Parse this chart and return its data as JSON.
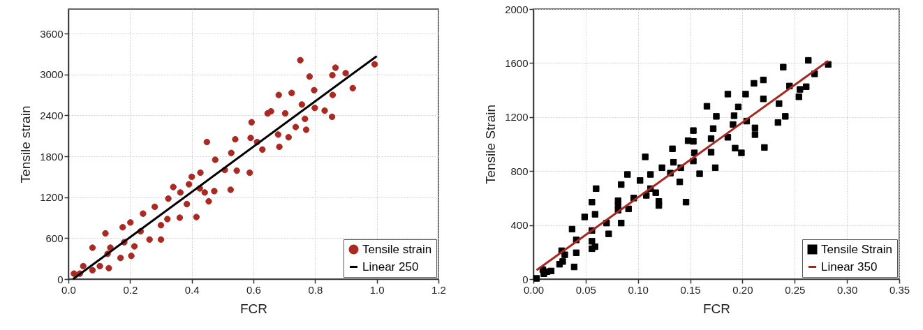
{
  "chart_data": [
    {
      "type": "scatter",
      "xlabel": "FCR",
      "ylabel": "Tensile strain",
      "xlim": [
        0,
        1.2
      ],
      "ylim": [
        0,
        3960
      ],
      "xticks": [
        {
          "value": 0,
          "label": "0.0"
        },
        0.2,
        0.4,
        0.6,
        0.8,
        {
          "value": 1,
          "label": "1.0"
        },
        1.2
      ],
      "yticks": [
        0,
        600,
        1200,
        1800,
        2400,
        3000,
        3600
      ],
      "grid": true,
      "legend": "bottom right",
      "series": [
        {
          "name": "Tensile strain",
          "type": "scatter",
          "marker": "circle",
          "color": "#a82a22",
          "x": [
            0.018,
            0.037,
            0.048,
            0.078,
            0.078,
            0.102,
            0.12,
            0.131,
            0.127,
            0.136,
            0.169,
            0.176,
            0.181,
            0.201,
            0.204,
            0.214,
            0.234,
            0.242,
            0.263,
            0.28,
            0.3,
            0.3,
            0.321,
            0.324,
            0.34,
            0.361,
            0.363,
            0.384,
            0.391,
            0.4,
            0.415,
            0.428,
            0.426,
            0.442,
            0.449,
            0.455,
            0.473,
            0.476,
            0.507,
            0.526,
            0.528,
            0.541,
            0.546,
            0.588,
            0.591,
            0.594,
            0.612,
            0.629,
            0.682,
            0.684,
            0.68,
            0.646,
            0.657,
            0.703,
            0.714,
            0.724,
            0.737,
            0.752,
            0.757,
            0.767,
            0.771,
            0.782,
            0.797,
            0.799,
            0.831,
            0.855,
            0.857,
            0.856,
            0.866,
            0.899,
            0.922,
            0.993
          ],
          "values": [
            80,
            80,
            190,
            130,
            460,
            190,
            670,
            160,
            370,
            460,
            310,
            760,
            540,
            830,
            340,
            480,
            700,
            960,
            580,
            1060,
            580,
            790,
            880,
            1180,
            1350,
            900,
            1270,
            1100,
            1390,
            1500,
            910,
            1560,
            1330,
            1270,
            2010,
            1140,
            1290,
            1750,
            1600,
            1310,
            1850,
            2050,
            1590,
            1560,
            2070,
            2300,
            2010,
            1900,
            2700,
            1940,
            2120,
            2430,
            2460,
            2430,
            2080,
            2730,
            2230,
            3210,
            2560,
            2350,
            2190,
            2970,
            2770,
            2510,
            2470,
            2380,
            2700,
            2990,
            3100,
            3020,
            2800,
            3150
          ]
        },
        {
          "name": "Linear 250",
          "type": "line",
          "color": "#000000",
          "x": [
            0.015,
            1.0
          ],
          "values": [
            0,
            3270
          ]
        }
      ]
    },
    {
      "type": "scatter",
      "xlabel": "FCR",
      "ylabel": "Tensile Strain",
      "xlim": [
        0,
        0.35
      ],
      "ylim": [
        0,
        2000
      ],
      "xticks": [
        {
          "value": 0,
          "label": "0.00"
        },
        0.05,
        {
          "value": 0.1,
          "label": "0.10"
        },
        0.15,
        {
          "value": 0.2,
          "label": "0.20"
        },
        0.25,
        {
          "value": 0.3,
          "label": "0.30"
        },
        0.35
      ],
      "yticks": [
        0,
        400,
        800,
        1200,
        1600,
        2000
      ],
      "grid": true,
      "legend": "bottom right",
      "series": [
        {
          "name": "Tensile Strain",
          "type": "scatter",
          "marker": "square",
          "color": "#000000",
          "x": [
            0.003,
            0.009,
            0.01,
            0.013,
            0.017,
            0.025,
            0.028,
            0.027,
            0.03,
            0.037,
            0.039,
            0.041,
            0.041,
            0.049,
            0.056,
            0.056,
            0.056,
            0.056,
            0.059,
            0.059,
            0.06,
            0.07,
            0.072,
            0.081,
            0.081,
            0.081,
            0.084,
            0.084,
            0.091,
            0.09,
            0.096,
            0.102,
            0.107,
            0.108,
            0.112,
            0.112,
            0.117,
            0.12,
            0.12,
            0.123,
            0.131,
            0.133,
            0.134,
            0.14,
            0.141,
            0.146,
            0.148,
            0.153,
            0.153,
            0.154,
            0.153,
            0.159,
            0.166,
            0.17,
            0.17,
            0.172,
            0.174,
            0.175,
            0.186,
            0.186,
            0.191,
            0.192,
            0.193,
            0.196,
            0.199,
            0.203,
            0.204,
            0.211,
            0.212,
            0.212,
            0.22,
            0.22,
            0.221,
            0.234,
            0.235,
            0.239,
            0.241,
            0.245,
            0.254,
            0.255,
            0.261,
            0.263,
            0.269,
            0.282
          ],
          "values": [
            5,
            70,
            40,
            55,
            60,
            110,
            130,
            210,
            180,
            370,
            90,
            290,
            195,
            460,
            570,
            360,
            280,
            225,
            240,
            480,
            670,
            415,
            335,
            580,
            545,
            510,
            700,
            415,
            520,
            775,
            600,
            730,
            905,
            620,
            775,
            670,
            640,
            575,
            545,
            825,
            785,
            965,
            865,
            720,
            825,
            570,
            1025,
            1100,
            1020,
            935,
            875,
            780,
            1280,
            1040,
            940,
            1115,
            825,
            1205,
            1370,
            1050,
            1145,
            1210,
            970,
            1275,
            935,
            1370,
            1170,
            1450,
            1120,
            1070,
            1475,
            1335,
            975,
            1160,
            1300,
            1570,
            1205,
            1430,
            1350,
            1405,
            1425,
            1620,
            1520,
            1590
          ]
        },
        {
          "name": "Linear 350",
          "type": "line",
          "color": "#a5271f",
          "x": [
            0.003,
            0.282
          ],
          "values": [
            66,
            1616
          ]
        }
      ]
    }
  ]
}
